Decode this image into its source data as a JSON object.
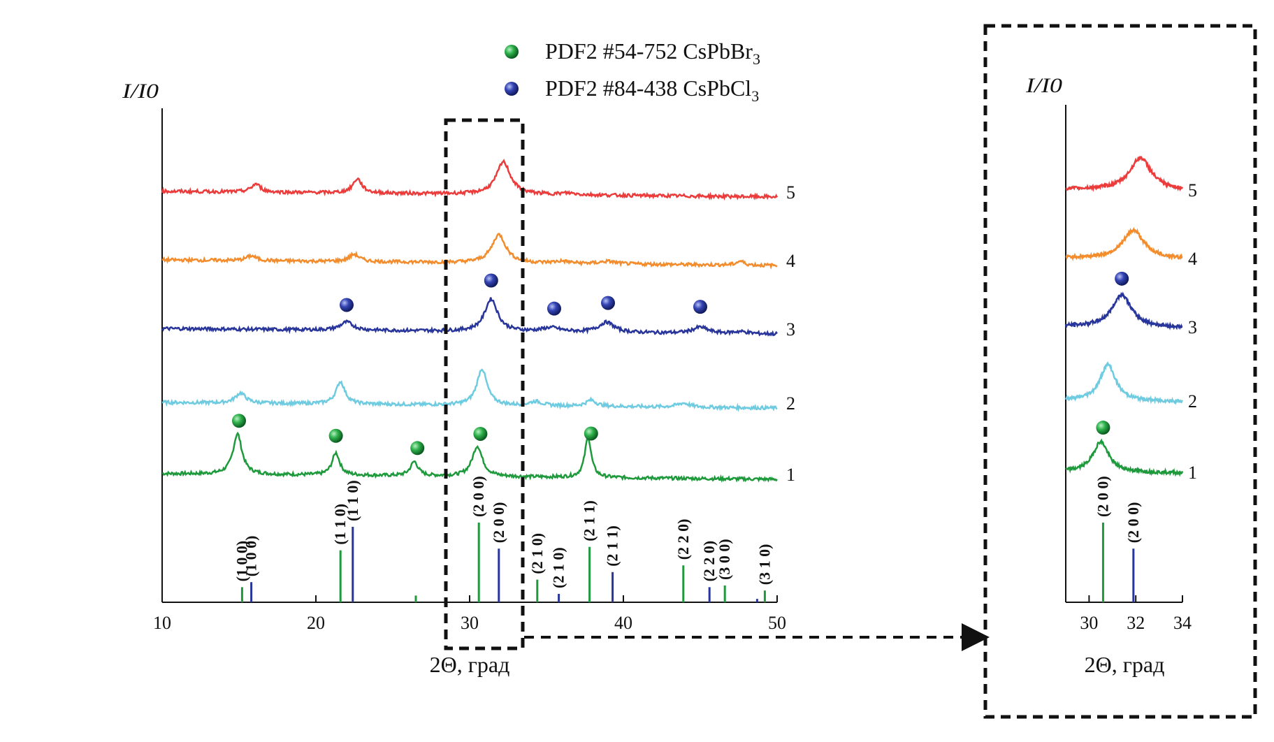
{
  "legend": [
    {
      "marker_color": "#1e9a3c",
      "label": "PDF2 #54-752 CsPbBr",
      "sub": "3"
    },
    {
      "marker_color": "#28359a",
      "label": "PDF2 #84-438 CsPbCl",
      "sub": "3"
    }
  ],
  "colors": {
    "s1": "#1e9a3c",
    "s2": "#6fcbe0",
    "s3": "#28359a",
    "s4": "#f28c2c",
    "s5": "#ec3b3b",
    "refBr": "#1e9a3c",
    "refCl": "#28359a"
  },
  "chart_data": [
    {
      "type": "line",
      "ylabel": "I/I0",
      "xlabel": "2Θ, град",
      "xlim": [
        10,
        50
      ],
      "xticks": [
        "10",
        "20",
        "30",
        "40",
        "50"
      ],
      "series": [
        {
          "name": "1",
          "color": "#1e9a3c",
          "base": 0,
          "peaks": [
            [
              14.9,
              1.0,
              0.35
            ],
            [
              21.3,
              0.55,
              0.3
            ],
            [
              26.4,
              0.35,
              0.3
            ],
            [
              30.5,
              0.75,
              0.4
            ],
            [
              37.7,
              1.0,
              0.25
            ]
          ]
        },
        {
          "name": "2",
          "color": "#6fcbe0",
          "base": 1.35,
          "peaks": [
            [
              15.1,
              0.25,
              0.4
            ],
            [
              21.6,
              0.55,
              0.35
            ],
            [
              30.8,
              0.9,
              0.4
            ],
            [
              34.3,
              0.1,
              0.5
            ],
            [
              37.9,
              0.15,
              0.4
            ],
            [
              43.9,
              0.1,
              0.5
            ]
          ]
        },
        {
          "name": "3",
          "color": "#28359a",
          "base": 2.75,
          "peaks": [
            [
              22.0,
              0.2,
              0.5
            ],
            [
              31.4,
              0.8,
              0.5
            ],
            [
              35.3,
              0.1,
              0.7
            ],
            [
              38.9,
              0.25,
              0.6
            ],
            [
              45.0,
              0.15,
              0.6
            ],
            [
              47.6,
              0.05,
              0.6
            ]
          ]
        },
        {
          "name": "4",
          "color": "#f28c2c",
          "base": 4.05,
          "peaks": [
            [
              15.8,
              0.12,
              0.4
            ],
            [
              22.5,
              0.18,
              0.4
            ],
            [
              31.9,
              0.7,
              0.55
            ],
            [
              36.0,
              0.05,
              0.6
            ],
            [
              39.0,
              0.06,
              0.6
            ],
            [
              47.6,
              0.1,
              0.3
            ]
          ]
        },
        {
          "name": "5",
          "color": "#ec3b3b",
          "base": 5.35,
          "peaks": [
            [
              16.1,
              0.2,
              0.35
            ],
            [
              22.7,
              0.35,
              0.35
            ],
            [
              32.2,
              0.8,
              0.55
            ],
            [
              36.4,
              0.04,
              0.6
            ]
          ]
        }
      ],
      "markers_br": [
        {
          "x": 15.0,
          "series": "1"
        },
        {
          "x": 21.3,
          "series": "1"
        },
        {
          "x": 26.6,
          "series": "1"
        },
        {
          "x": 30.7,
          "series": "1"
        },
        {
          "x": 37.9,
          "series": "1"
        }
      ],
      "markers_cl": [
        {
          "x": 22.0,
          "series": "3"
        },
        {
          "x": 31.4,
          "series": "3"
        },
        {
          "x": 35.5,
          "series": "3"
        },
        {
          "x": 39.0,
          "series": "3"
        },
        {
          "x": 45.0,
          "series": "3"
        }
      ],
      "ref_br": [
        {
          "x": 15.2,
          "h": 0.18,
          "label": "(1 0 0)"
        },
        {
          "x": 21.6,
          "h": 0.62,
          "label": "(1 1 0)"
        },
        {
          "x": 26.5,
          "h": 0.08,
          "label": ""
        },
        {
          "x": 30.6,
          "h": 0.95,
          "label": "(2 0 0)"
        },
        {
          "x": 34.4,
          "h": 0.27,
          "label": "(2 1 0)"
        },
        {
          "x": 37.8,
          "h": 0.66,
          "label": "(2 1 1)"
        },
        {
          "x": 43.9,
          "h": 0.44,
          "label": "(2 2 0)"
        },
        {
          "x": 46.6,
          "h": 0.2,
          "label": "(3 0 0)"
        },
        {
          "x": 49.2,
          "h": 0.14,
          "label": "(3 1 0)"
        }
      ],
      "ref_cl": [
        {
          "x": 15.8,
          "h": 0.24,
          "label": "(1 0 0)"
        },
        {
          "x": 22.4,
          "h": 0.9,
          "label": "(1 1 0)"
        },
        {
          "x": 31.9,
          "h": 0.64,
          "label": "(2 0 0)"
        },
        {
          "x": 35.8,
          "h": 0.1,
          "label": "(2 1 0)"
        },
        {
          "x": 39.3,
          "h": 0.36,
          "label": "(2 1 1)"
        },
        {
          "x": 45.6,
          "h": 0.18,
          "label": "(2 2 0)"
        },
        {
          "x": 48.7,
          "h": 0.04,
          "label": ""
        }
      ]
    },
    {
      "type": "line",
      "ylabel": "I/I0",
      "xlabel": "2Θ, град",
      "xlim": [
        29,
        34
      ],
      "xticks": [
        "30",
        "32",
        "34"
      ],
      "series": [
        {
          "name": "1",
          "color": "#1e9a3c",
          "base": 0,
          "peaks": [
            [
              30.5,
              0.75,
              0.4
            ]
          ]
        },
        {
          "name": "2",
          "color": "#6fcbe0",
          "base": 1.35,
          "peaks": [
            [
              30.8,
              0.9,
              0.4
            ]
          ]
        },
        {
          "name": "3",
          "color": "#28359a",
          "base": 2.75,
          "peaks": [
            [
              31.4,
              0.8,
              0.5
            ]
          ]
        },
        {
          "name": "4",
          "color": "#f28c2c",
          "base": 4.05,
          "peaks": [
            [
              31.9,
              0.7,
              0.55
            ]
          ]
        },
        {
          "name": "5",
          "color": "#ec3b3b",
          "base": 5.35,
          "peaks": [
            [
              32.2,
              0.8,
              0.55
            ]
          ]
        }
      ],
      "markers_br": [
        {
          "x": 30.6,
          "series": "1"
        }
      ],
      "markers_cl": [
        {
          "x": 31.4,
          "series": "3"
        }
      ],
      "ref_br": [
        {
          "x": 30.6,
          "h": 0.95,
          "label": "(2 0 0)"
        }
      ],
      "ref_cl": [
        {
          "x": 31.9,
          "h": 0.64,
          "label": "(2 0 0)"
        }
      ]
    }
  ]
}
